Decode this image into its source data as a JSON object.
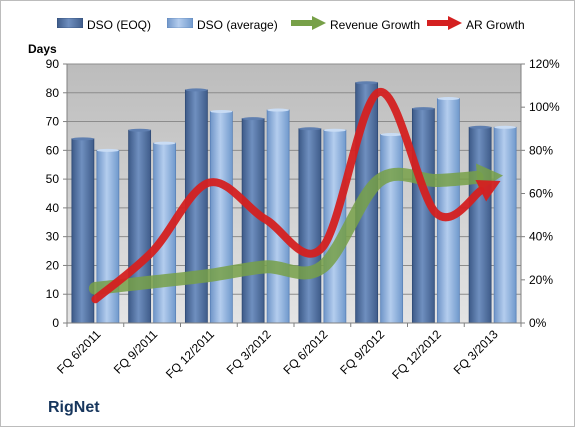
{
  "company": "RigNet",
  "chart_data": {
    "type": "bar",
    "categories": [
      "FQ 6/2011",
      "FQ 9/2011",
      "FQ 12/2011",
      "FQ 3/2012",
      "FQ 6/2012",
      "FQ 9/2012",
      "FQ 12/2012",
      "FQ 3/2013"
    ],
    "ylabel": "Days",
    "ylim": [
      0,
      90
    ],
    "yticks": [
      "0",
      "10",
      "20",
      "30",
      "40",
      "50",
      "60",
      "70",
      "80",
      "90"
    ],
    "y2lim": [
      0,
      120
    ],
    "y2ticks": [
      "0%",
      "20%",
      "40%",
      "60%",
      "80%",
      "100%",
      "120%"
    ],
    "grid": true,
    "legend_position": "top",
    "series": [
      {
        "name": "DSO (EOQ)",
        "type": "bar",
        "axis": "left",
        "color": "#4f6f9f",
        "values": [
          64,
          67,
          81,
          71,
          67.5,
          83.5,
          74.5,
          68
        ]
      },
      {
        "name": "DSO (average)",
        "type": "bar",
        "axis": "left",
        "color": "#8fb1dd",
        "values": [
          60,
          62.5,
          73.5,
          74,
          67,
          65.5,
          78,
          68
        ]
      },
      {
        "name": "Revenue Growth",
        "type": "arrow-line",
        "axis": "right",
        "color": "#77a048",
        "values": [
          16,
          19,
          22,
          26,
          26,
          66,
          66,
          68
        ]
      },
      {
        "name": "AR Growth",
        "type": "arrow-line",
        "axis": "right",
        "color": "#d42020",
        "values": [
          11,
          33,
          65,
          48,
          35,
          107,
          51,
          64
        ]
      }
    ]
  }
}
